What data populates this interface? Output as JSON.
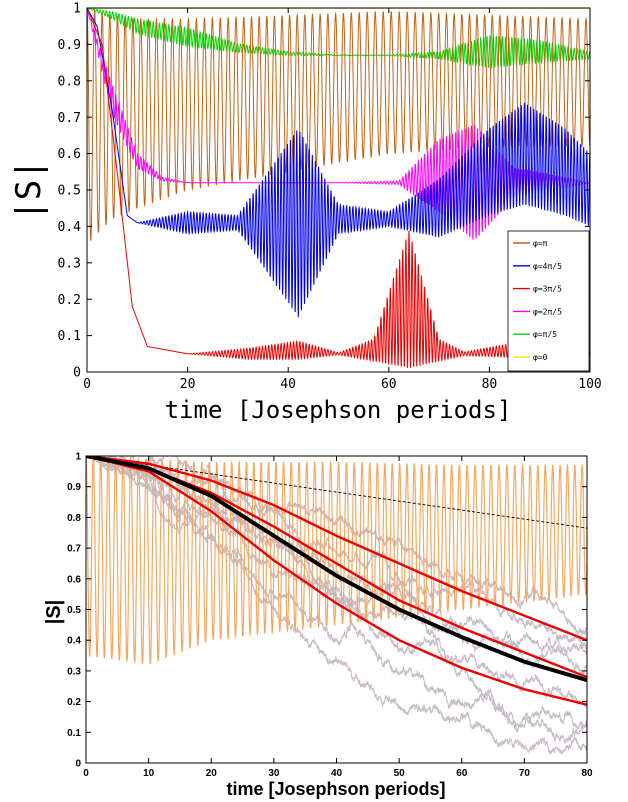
{
  "chart_data": [
    {
      "type": "line",
      "xlabel": "time [Josephson periods]",
      "ylabel": "|S|",
      "xlim": [
        0,
        100
      ],
      "ylim": [
        0,
        1
      ],
      "xticks": [
        "0",
        "20",
        "40",
        "60",
        "80",
        "100"
      ],
      "yticks": [
        "0",
        "0.1",
        "0.2",
        "0.3",
        "0.4",
        "0.5",
        "0.6",
        "0.7",
        "0.8",
        "0.9",
        "1"
      ],
      "grid": false,
      "legend_position": "right",
      "series": [
        {
          "name": "φ=π",
          "color": "#c06414",
          "x": [
            0,
            2,
            5,
            10,
            20,
            40,
            60,
            80,
            100
          ],
          "y_envelope_low": [
            0.35,
            0.38,
            0.42,
            0.45,
            0.5,
            0.55,
            0.6,
            0.62,
            0.62
          ],
          "y_envelope_high": [
            1.0,
            0.99,
            0.98,
            0.97,
            0.97,
            0.98,
            0.99,
            0.98,
            0.97
          ]
        },
        {
          "name": "φ=4π/5",
          "color": "#0000ee",
          "x": [
            0,
            2,
            5,
            8,
            10,
            20,
            30,
            42,
            50,
            60,
            70,
            80,
            87,
            95,
            100
          ],
          "y": [
            1.0,
            0.95,
            0.72,
            0.43,
            0.41,
            0.41,
            0.41,
            0.41,
            0.42,
            0.42,
            0.45,
            0.55,
            0.6,
            0.55,
            0.5
          ],
          "oscillation_amplitude": [
            0,
            0,
            0,
            0,
            0,
            0.03,
            0.02,
            0.26,
            0.04,
            0.02,
            0.08,
            0.12,
            0.14,
            0.12,
            0.1
          ]
        },
        {
          "name": "φ=3π/5",
          "color": "#ee0000",
          "x": [
            0,
            3,
            6,
            9,
            12,
            20,
            32,
            42,
            50,
            57,
            64,
            70,
            75,
            85,
            100
          ],
          "y": [
            1.0,
            0.9,
            0.55,
            0.18,
            0.07,
            0.05,
            0.05,
            0.06,
            0.05,
            0.06,
            0.2,
            0.06,
            0.05,
            0.06,
            0.05
          ],
          "oscillation_amplitude": [
            0,
            0,
            0,
            0,
            0,
            0,
            0.015,
            0.025,
            0.003,
            0.03,
            0.19,
            0.03,
            0.005,
            0.02,
            0.005
          ]
        },
        {
          "name": "φ=2π/5",
          "color": "#ff00ff",
          "x": [
            0,
            5,
            10,
            15,
            20,
            50,
            62,
            70,
            77,
            85,
            100
          ],
          "y": [
            1.0,
            0.75,
            0.58,
            0.53,
            0.52,
            0.52,
            0.52,
            0.54,
            0.52,
            0.52,
            0.52
          ],
          "oscillation_amplitude": [
            0,
            0.04,
            0.02,
            0.005,
            0,
            0,
            0.005,
            0.1,
            0.16,
            0.04,
            0
          ]
        },
        {
          "name": "φ=π/5",
          "color": "#00dd00",
          "x": [
            0,
            5,
            10,
            20,
            30,
            40,
            50,
            60,
            70,
            80,
            90,
            100
          ],
          "y": [
            1.0,
            0.98,
            0.95,
            0.92,
            0.89,
            0.875,
            0.87,
            0.87,
            0.87,
            0.88,
            0.88,
            0.87
          ],
          "oscillation_amplitude": [
            0,
            0.01,
            0.02,
            0.025,
            0.012,
            0.005,
            0.001,
            0.001,
            0.01,
            0.045,
            0.03,
            0.01
          ]
        },
        {
          "name": "φ=0",
          "color": "#eeee00",
          "x": [
            0,
            100
          ],
          "y": [
            1.0,
            1.0
          ]
        }
      ]
    },
    {
      "type": "line",
      "xlabel": "time [Josephson periods]",
      "ylabel": "|S|",
      "xlim": [
        0,
        80
      ],
      "ylim": [
        0,
        1
      ],
      "xticks": [
        "0",
        "10",
        "20",
        "30",
        "40",
        "50",
        "60",
        "70",
        "80"
      ],
      "yticks": [
        "0",
        "0.1",
        "0.2",
        "0.3",
        "0.4",
        "0.5",
        "0.6",
        "0.7",
        "0.8",
        "0.9",
        "1"
      ],
      "grid": false,
      "series": [
        {
          "color": "#f4a860",
          "x": [
            0,
            10,
            20,
            40,
            60,
            80
          ],
          "y_envelope_low": [
            0.35,
            0.32,
            0.4,
            0.45,
            0.5,
            0.55
          ],
          "y_envelope_high": [
            1.0,
            0.99,
            0.98,
            0.98,
            0.97,
            0.97
          ]
        },
        {
          "color": "#000000",
          "style": "bold",
          "x": [
            0,
            10,
            20,
            30,
            40,
            50,
            60,
            70,
            80
          ],
          "y": [
            1.0,
            0.96,
            0.87,
            0.74,
            0.61,
            0.5,
            0.41,
            0.33,
            0.27
          ]
        },
        {
          "color": "#ee0000",
          "x": [
            0,
            10,
            20,
            30,
            40,
            50,
            60,
            70,
            80
          ],
          "y": [
            1.0,
            0.975,
            0.92,
            0.84,
            0.74,
            0.65,
            0.56,
            0.48,
            0.4
          ]
        },
        {
          "color": "#ee0000",
          "x": [
            0,
            10,
            20,
            30,
            40,
            50,
            60,
            70,
            80
          ],
          "y": [
            1.0,
            0.96,
            0.88,
            0.77,
            0.65,
            0.53,
            0.44,
            0.36,
            0.28
          ]
        },
        {
          "color": "#ee0000",
          "x": [
            0,
            10,
            20,
            30,
            40,
            50,
            60,
            70,
            80
          ],
          "y": [
            1.0,
            0.95,
            0.82,
            0.66,
            0.52,
            0.4,
            0.31,
            0.24,
            0.19
          ]
        },
        {
          "color": "#000000",
          "style": "dashed",
          "x": [
            0,
            80
          ],
          "y": [
            1.0,
            0.765
          ]
        },
        {
          "color": "#c8bcc8",
          "style": "noisy",
          "x": [
            0,
            10,
            20,
            30,
            40,
            50,
            60,
            70,
            80
          ],
          "y": [
            1.0,
            0.97,
            0.9,
            0.8,
            0.7,
            0.6,
            0.52,
            0.45,
            0.38
          ]
        },
        {
          "color": "#c8bcc8",
          "style": "noisy",
          "x": [
            0,
            10,
            20,
            30,
            40,
            50,
            60,
            70,
            80
          ],
          "y": [
            1.0,
            0.95,
            0.85,
            0.72,
            0.6,
            0.52,
            0.45,
            0.38,
            0.32
          ]
        },
        {
          "color": "#c8bcc8",
          "style": "noisy",
          "x": [
            0,
            10,
            20,
            30,
            40,
            50,
            60,
            70,
            80
          ],
          "y": [
            1.0,
            0.92,
            0.76,
            0.6,
            0.46,
            0.33,
            0.24,
            0.16,
            0.1
          ]
        },
        {
          "color": "#c8bcc8",
          "style": "noisy",
          "x": [
            0,
            10,
            20,
            30,
            40,
            50,
            60,
            70,
            80
          ],
          "y": [
            1.0,
            0.93,
            0.8,
            0.66,
            0.54,
            0.44,
            0.35,
            0.26,
            0.2
          ]
        },
        {
          "color": "#c8bcc8",
          "style": "noisy",
          "x": [
            0,
            10,
            20,
            30,
            40,
            50,
            60,
            70,
            80
          ],
          "y": [
            1.0,
            0.9,
            0.72,
            0.52,
            0.36,
            0.2,
            0.1,
            0.06,
            0.08
          ]
        },
        {
          "color": "#c8bcc8",
          "style": "noisy",
          "x": [
            0,
            10,
            20,
            30,
            40,
            50,
            60,
            70,
            80
          ],
          "y": [
            1.0,
            0.98,
            0.93,
            0.86,
            0.78,
            0.7,
            0.62,
            0.54,
            0.48
          ]
        },
        {
          "color": "#c8bcc8",
          "style": "noisy",
          "x": [
            0,
            10,
            20,
            30,
            40,
            50,
            60,
            70,
            80
          ],
          "y": [
            1.0,
            0.96,
            0.87,
            0.76,
            0.64,
            0.55,
            0.47,
            0.4,
            0.34
          ]
        },
        {
          "color": "#c8bcc8",
          "style": "noisy",
          "x": [
            0,
            10,
            20,
            30,
            40,
            50,
            60,
            70,
            80
          ],
          "y": [
            1.0,
            0.94,
            0.82,
            0.68,
            0.56,
            0.42,
            0.3,
            0.2,
            0.13
          ]
        }
      ]
    }
  ]
}
